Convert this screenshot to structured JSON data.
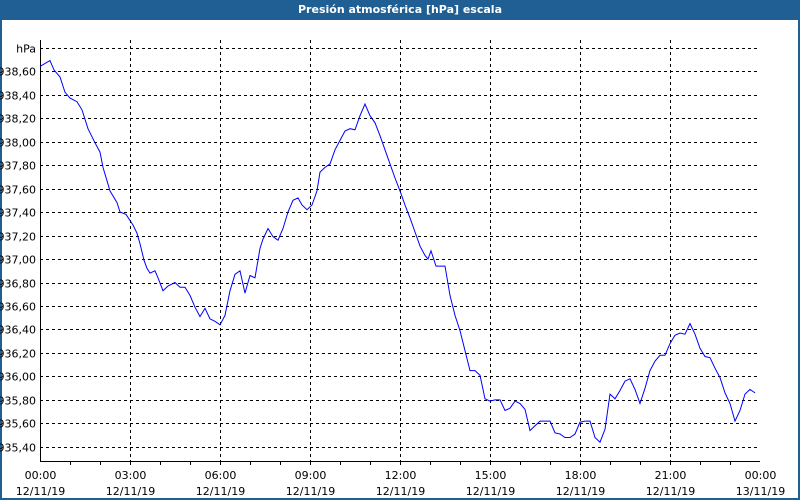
{
  "window": {
    "title": "Presión atmosférica [hPa] escala"
  },
  "chart_data": {
    "type": "line",
    "title": "Presión atmosférica [hPa] escala",
    "ylabel": "hPa",
    "xlabel": "",
    "ylim": [
      935.28,
      938.865
    ],
    "xlim_minutes": [
      0,
      1440
    ],
    "grid": true,
    "line_color": "#0000ff",
    "y_ticks": [
      {
        "value": 938.8,
        "label": "hPa"
      },
      {
        "value": 938.6,
        "label": "938,60"
      },
      {
        "value": 938.4,
        "label": "938,40"
      },
      {
        "value": 938.2,
        "label": "938,20"
      },
      {
        "value": 938.0,
        "label": "938,00"
      },
      {
        "value": 937.8,
        "label": "937,80"
      },
      {
        "value": 937.6,
        "label": "937,60"
      },
      {
        "value": 937.4,
        "label": "937,40"
      },
      {
        "value": 937.2,
        "label": "937,20"
      },
      {
        "value": 937.0,
        "label": "937,00"
      },
      {
        "value": 936.8,
        "label": "936,80"
      },
      {
        "value": 936.6,
        "label": "936,60"
      },
      {
        "value": 936.4,
        "label": "936,40"
      },
      {
        "value": 936.2,
        "label": "936,20"
      },
      {
        "value": 936.0,
        "label": "936,00"
      },
      {
        "value": 935.8,
        "label": "935,80"
      },
      {
        "value": 935.6,
        "label": "935,60"
      },
      {
        "value": 935.4,
        "label": "935,40"
      }
    ],
    "x_ticks": [
      {
        "minute": 0,
        "time": "00:00",
        "date": "12/11/19"
      },
      {
        "minute": 180,
        "time": "03:00",
        "date": "12/11/19"
      },
      {
        "minute": 360,
        "time": "06:00",
        "date": "12/11/19"
      },
      {
        "minute": 540,
        "time": "09:00",
        "date": "12/11/19"
      },
      {
        "minute": 720,
        "time": "12:00",
        "date": "12/11/19"
      },
      {
        "minute": 900,
        "time": "15:00",
        "date": "12/11/19"
      },
      {
        "minute": 1080,
        "time": "18:00",
        "date": "12/11/19"
      },
      {
        "minute": 1260,
        "time": "21:00",
        "date": "12/11/19"
      },
      {
        "minute": 1440,
        "time": "00:00",
        "date": "13/11/19"
      }
    ],
    "series": [
      {
        "name": "Presión atmosférica",
        "points": [
          [
            0,
            938.64
          ],
          [
            20,
            938.69
          ],
          [
            28,
            938.61
          ],
          [
            40,
            938.55
          ],
          [
            50,
            938.42
          ],
          [
            60,
            938.37
          ],
          [
            74,
            938.34
          ],
          [
            84,
            938.27
          ],
          [
            96,
            938.11
          ],
          [
            110,
            937.99
          ],
          [
            120,
            937.91
          ],
          [
            126,
            937.78
          ],
          [
            140,
            937.58
          ],
          [
            154,
            937.48
          ],
          [
            160,
            937.4
          ],
          [
            172,
            937.38
          ],
          [
            186,
            937.29
          ],
          [
            194,
            937.22
          ],
          [
            200,
            937.13
          ],
          [
            208,
            936.99
          ],
          [
            214,
            936.92
          ],
          [
            220,
            936.88
          ],
          [
            230,
            936.9
          ],
          [
            236,
            936.84
          ],
          [
            246,
            936.73
          ],
          [
            256,
            936.77
          ],
          [
            270,
            936.8
          ],
          [
            280,
            936.76
          ],
          [
            290,
            936.76
          ],
          [
            300,
            936.69
          ],
          [
            310,
            936.59
          ],
          [
            320,
            936.51
          ],
          [
            330,
            936.58
          ],
          [
            340,
            936.49
          ],
          [
            350,
            936.47
          ],
          [
            360,
            936.44
          ],
          [
            370,
            936.52
          ],
          [
            380,
            936.73
          ],
          [
            390,
            936.87
          ],
          [
            400,
            936.9
          ],
          [
            410,
            936.71
          ],
          [
            420,
            936.86
          ],
          [
            430,
            936.84
          ],
          [
            440,
            937.09
          ],
          [
            446,
            937.17
          ],
          [
            456,
            937.26
          ],
          [
            466,
            937.19
          ],
          [
            476,
            937.16
          ],
          [
            486,
            937.26
          ],
          [
            496,
            937.4
          ],
          [
            506,
            937.5
          ],
          [
            516,
            937.52
          ],
          [
            524,
            937.46
          ],
          [
            534,
            937.42
          ],
          [
            544,
            937.46
          ],
          [
            554,
            937.58
          ],
          [
            560,
            937.74
          ],
          [
            570,
            937.78
          ],
          [
            580,
            937.81
          ],
          [
            590,
            937.93
          ],
          [
            600,
            938.01
          ],
          [
            610,
            938.09
          ],
          [
            620,
            938.11
          ],
          [
            630,
            938.1
          ],
          [
            640,
            938.22
          ],
          [
            650,
            938.32
          ],
          [
            660,
            938.22
          ],
          [
            670,
            938.16
          ],
          [
            680,
            938.05
          ],
          [
            690,
            937.93
          ],
          [
            700,
            937.81
          ],
          [
            710,
            937.69
          ],
          [
            720,
            937.58
          ],
          [
            730,
            937.46
          ],
          [
            740,
            937.35
          ],
          [
            750,
            937.23
          ],
          [
            760,
            937.11
          ],
          [
            770,
            937.03
          ],
          [
            776,
            937.0
          ],
          [
            782,
            937.07
          ],
          [
            792,
            936.94
          ],
          [
            810,
            936.94
          ],
          [
            820,
            936.69
          ],
          [
            830,
            936.52
          ],
          [
            840,
            936.39
          ],
          [
            850,
            936.22
          ],
          [
            860,
            936.05
          ],
          [
            870,
            936.05
          ],
          [
            880,
            936.01
          ],
          [
            890,
            935.81
          ],
          [
            900,
            935.79
          ],
          [
            910,
            935.8
          ],
          [
            920,
            935.8
          ],
          [
            930,
            935.71
          ],
          [
            940,
            935.73
          ],
          [
            950,
            935.79
          ],
          [
            960,
            935.77
          ],
          [
            970,
            935.72
          ],
          [
            980,
            935.54
          ],
          [
            990,
            935.58
          ],
          [
            1000,
            935.62
          ],
          [
            1020,
            935.62
          ],
          [
            1030,
            935.52
          ],
          [
            1040,
            935.51
          ],
          [
            1050,
            935.48
          ],
          [
            1060,
            935.48
          ],
          [
            1070,
            935.51
          ],
          [
            1080,
            935.61
          ],
          [
            1090,
            935.62
          ],
          [
            1100,
            935.62
          ],
          [
            1110,
            935.48
          ],
          [
            1120,
            935.44
          ],
          [
            1130,
            935.55
          ],
          [
            1140,
            935.85
          ],
          [
            1150,
            935.81
          ],
          [
            1160,
            935.88
          ],
          [
            1170,
            935.96
          ],
          [
            1180,
            935.98
          ],
          [
            1190,
            935.89
          ],
          [
            1200,
            935.77
          ],
          [
            1210,
            935.9
          ],
          [
            1220,
            936.05
          ],
          [
            1230,
            936.13
          ],
          [
            1240,
            936.18
          ],
          [
            1250,
            936.18
          ],
          [
            1260,
            936.28
          ],
          [
            1270,
            936.35
          ],
          [
            1280,
            936.37
          ],
          [
            1290,
            936.36
          ],
          [
            1300,
            936.45
          ],
          [
            1310,
            936.36
          ],
          [
            1320,
            936.24
          ],
          [
            1330,
            936.17
          ],
          [
            1340,
            936.16
          ],
          [
            1350,
            936.07
          ],
          [
            1360,
            935.99
          ],
          [
            1370,
            935.86
          ],
          [
            1380,
            935.77
          ],
          [
            1390,
            935.62
          ],
          [
            1400,
            935.71
          ],
          [
            1410,
            935.85
          ],
          [
            1420,
            935.89
          ],
          [
            1430,
            935.86
          ]
        ]
      }
    ]
  }
}
